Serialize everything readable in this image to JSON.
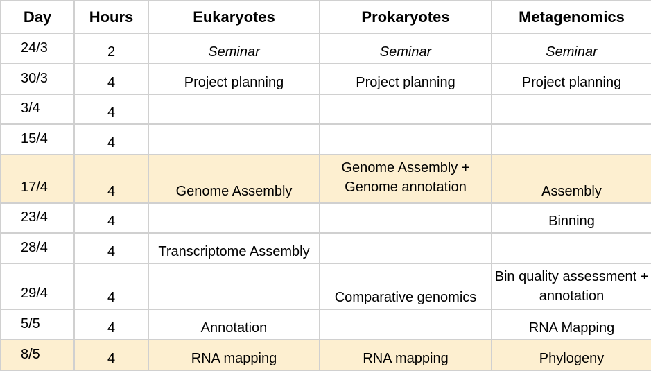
{
  "header": {
    "day": "Day",
    "hours": "Hours",
    "eukaryotes": "Eukaryotes",
    "prokaryotes": "Prokaryotes",
    "metagenomics": "Metagenomics"
  },
  "rows": [
    {
      "day": "24/3",
      "hours": "2",
      "eukaryotes": "Seminar",
      "prokaryotes": "Seminar",
      "metagenomics": "Seminar",
      "highlight": false
    },
    {
      "day": "30/3",
      "hours": "4",
      "eukaryotes": "Project planning",
      "prokaryotes": "Project planning",
      "metagenomics": "Project planning",
      "highlight": false
    },
    {
      "day": "3/4",
      "hours": "4",
      "eukaryotes": "",
      "prokaryotes": "",
      "metagenomics": "",
      "highlight": false
    },
    {
      "day": "15/4",
      "hours": "4",
      "eukaryotes": "",
      "prokaryotes": "",
      "metagenomics": "",
      "highlight": false
    },
    {
      "day": "17/4",
      "hours": "4",
      "eukaryotes": "Genome Assembly",
      "prokaryotes": "Genome Assembly + Genome annotation",
      "metagenomics": "Assembly",
      "highlight": true
    },
    {
      "day": "23/4",
      "hours": "4",
      "eukaryotes": "",
      "prokaryotes": "",
      "metagenomics": "Binning",
      "highlight": false
    },
    {
      "day": "28/4",
      "hours": "4",
      "eukaryotes": "Transcriptome Assembly",
      "prokaryotes": "",
      "metagenomics": "",
      "highlight": false
    },
    {
      "day": "29/4",
      "hours": "4",
      "eukaryotes": "",
      "prokaryotes": "Comparative genomics",
      "metagenomics": "Bin quality assessment + annotation",
      "highlight": false
    },
    {
      "day": "5/5",
      "hours": "4",
      "eukaryotes": "Annotation",
      "prokaryotes": "",
      "metagenomics": "RNA Mapping",
      "highlight": false
    },
    {
      "day": "8/5",
      "hours": "4",
      "eukaryotes": "RNA mapping",
      "prokaryotes": "RNA mapping",
      "metagenomics": "Phylogeny",
      "highlight": true
    }
  ],
  "colors": {
    "highlight_row": "#fdefd0",
    "grid": "#d0d0d0"
  }
}
